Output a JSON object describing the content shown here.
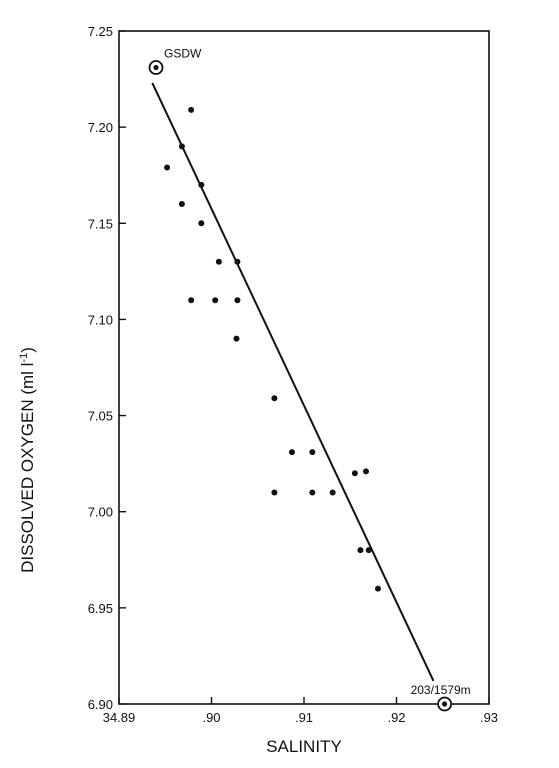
{
  "chart_data": {
    "type": "scatter",
    "title": "",
    "xlabel": "SALINITY",
    "ylabel_main": "DISSOLVED OXYGEN (ml l",
    "ylabel_sup": "-1",
    "ylabel_close": ")",
    "xlim": [
      34.89,
      34.93
    ],
    "ylim": [
      6.9,
      7.25
    ],
    "x_ticks": [
      {
        "value": 34.89,
        "label": "34.89"
      },
      {
        "value": 34.9,
        "label": ".90"
      },
      {
        "value": 34.91,
        "label": ".91"
      },
      {
        "value": 34.92,
        "label": ".92"
      },
      {
        "value": 34.93,
        "label": ".93"
      }
    ],
    "y_ticks": [
      {
        "value": 6.9,
        "label": "6.90"
      },
      {
        "value": 6.95,
        "label": "6.95"
      },
      {
        "value": 7.0,
        "label": "7.00"
      },
      {
        "value": 7.05,
        "label": "7.05"
      },
      {
        "value": 7.1,
        "label": "7.10"
      },
      {
        "value": 7.15,
        "label": "7.15"
      },
      {
        "value": 7.2,
        "label": "7.20"
      },
      {
        "value": 7.25,
        "label": "7.25"
      }
    ],
    "grid": false,
    "points": [
      {
        "x": 34.8952,
        "y": 7.179
      },
      {
        "x": 34.8968,
        "y": 7.19
      },
      {
        "x": 34.8978,
        "y": 7.209
      },
      {
        "x": 34.8968,
        "y": 7.16
      },
      {
        "x": 34.8978,
        "y": 7.11
      },
      {
        "x": 34.8989,
        "y": 7.17
      },
      {
        "x": 34.8989,
        "y": 7.15
      },
      {
        "x": 34.9004,
        "y": 7.11
      },
      {
        "x": 34.9008,
        "y": 7.13
      },
      {
        "x": 34.9028,
        "y": 7.13
      },
      {
        "x": 34.9028,
        "y": 7.11
      },
      {
        "x": 34.9027,
        "y": 7.09
      },
      {
        "x": 34.9068,
        "y": 7.059
      },
      {
        "x": 34.9068,
        "y": 7.01
      },
      {
        "x": 34.9087,
        "y": 7.031
      },
      {
        "x": 34.9109,
        "y": 7.031
      },
      {
        "x": 34.9109,
        "y": 7.01
      },
      {
        "x": 34.9131,
        "y": 7.01
      },
      {
        "x": 34.9155,
        "y": 7.02
      },
      {
        "x": 34.9167,
        "y": 7.021
      },
      {
        "x": 34.9161,
        "y": 6.98
      },
      {
        "x": 34.917,
        "y": 6.98
      },
      {
        "x": 34.918,
        "y": 6.96
      }
    ],
    "special_points": [
      {
        "x": 34.894,
        "y": 7.231,
        "label": "GSDW",
        "label_pos": "above-right"
      },
      {
        "x": 34.9252,
        "y": 6.9,
        "label": "203/1579m",
        "label_pos": "above-left"
      }
    ],
    "regression_line": {
      "x0": 34.8936,
      "y0": 7.223,
      "x1": 34.924,
      "y1": 6.912
    }
  }
}
